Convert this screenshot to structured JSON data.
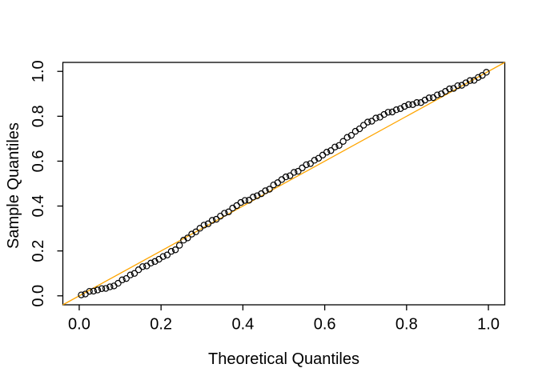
{
  "figure": {
    "background": "#FFFFFF"
  },
  "chart_data": {
    "type": "scatter",
    "title": "",
    "xlabel": "Theoretical Quantiles",
    "ylabel": "Sample Quantiles",
    "xlim": [
      0,
      1
    ],
    "ylim": [
      0,
      1
    ],
    "axis_expansion": 0.04,
    "grid": false,
    "legend": "none",
    "x_ticks": [
      0,
      0.2,
      0.4,
      0.6,
      0.8,
      1
    ],
    "x_tick_labels": [
      "0.0",
      "0.2",
      "0.4",
      "0.6",
      "0.8",
      "1.0"
    ],
    "y_ticks": [
      0,
      0.2,
      0.4,
      0.6,
      0.8,
      1
    ],
    "y_tick_labels": [
      "0.0",
      "0.2",
      "0.4",
      "0.6",
      "0.8",
      "1.0"
    ],
    "colors": {
      "points": "#000000",
      "reference_line": "#FFA500",
      "frame": "#000000",
      "background": "#FFFFFF"
    },
    "reference_line": {
      "name": "qq-line",
      "x": [
        -0.04,
        1.04
      ],
      "y": [
        -0.04,
        1.04
      ]
    },
    "series": [
      {
        "name": "sample-quantiles",
        "marker": "open-circle",
        "x": [
          0.005,
          0.015,
          0.025,
          0.035,
          0.045,
          0.055,
          0.065,
          0.075,
          0.085,
          0.095,
          0.105,
          0.115,
          0.125,
          0.135,
          0.145,
          0.155,
          0.165,
          0.175,
          0.185,
          0.195,
          0.205,
          0.215,
          0.225,
          0.235,
          0.245,
          0.255,
          0.265,
          0.275,
          0.285,
          0.295,
          0.305,
          0.315,
          0.325,
          0.335,
          0.345,
          0.355,
          0.365,
          0.375,
          0.385,
          0.395,
          0.405,
          0.415,
          0.425,
          0.435,
          0.445,
          0.455,
          0.465,
          0.475,
          0.485,
          0.495,
          0.505,
          0.515,
          0.525,
          0.535,
          0.545,
          0.555,
          0.565,
          0.575,
          0.585,
          0.595,
          0.605,
          0.615,
          0.625,
          0.635,
          0.645,
          0.655,
          0.665,
          0.675,
          0.685,
          0.695,
          0.705,
          0.715,
          0.725,
          0.735,
          0.745,
          0.755,
          0.765,
          0.775,
          0.785,
          0.795,
          0.805,
          0.815,
          0.825,
          0.835,
          0.845,
          0.855,
          0.865,
          0.875,
          0.885,
          0.895,
          0.905,
          0.915,
          0.925,
          0.935,
          0.945,
          0.955,
          0.965,
          0.975,
          0.985,
          0.995
        ],
        "y": [
          0.004,
          0.008,
          0.02,
          0.021,
          0.026,
          0.032,
          0.033,
          0.04,
          0.044,
          0.056,
          0.071,
          0.077,
          0.093,
          0.1,
          0.116,
          0.13,
          0.133,
          0.146,
          0.153,
          0.163,
          0.175,
          0.182,
          0.198,
          0.205,
          0.225,
          0.248,
          0.258,
          0.275,
          0.285,
          0.301,
          0.315,
          0.321,
          0.336,
          0.341,
          0.355,
          0.368,
          0.374,
          0.391,
          0.402,
          0.416,
          0.425,
          0.426,
          0.44,
          0.446,
          0.455,
          0.468,
          0.475,
          0.494,
          0.504,
          0.518,
          0.53,
          0.535,
          0.55,
          0.555,
          0.57,
          0.584,
          0.589,
          0.604,
          0.613,
          0.627,
          0.64,
          0.647,
          0.663,
          0.67,
          0.688,
          0.706,
          0.715,
          0.733,
          0.744,
          0.76,
          0.774,
          0.778,
          0.792,
          0.796,
          0.808,
          0.818,
          0.819,
          0.829,
          0.834,
          0.844,
          0.852,
          0.852,
          0.861,
          0.861,
          0.872,
          0.882,
          0.883,
          0.895,
          0.9,
          0.911,
          0.922,
          0.924,
          0.936,
          0.938,
          0.949,
          0.959,
          0.96,
          0.973,
          0.982,
          0.996
        ]
      }
    ]
  }
}
